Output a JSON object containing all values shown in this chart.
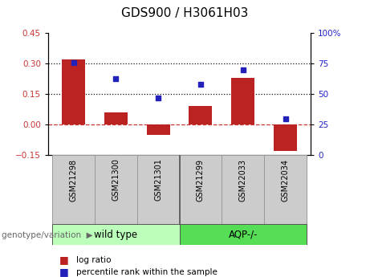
{
  "title": "GDS900 / H3061H03",
  "samples": [
    "GSM21298",
    "GSM21300",
    "GSM21301",
    "GSM21299",
    "GSM22033",
    "GSM22034"
  ],
  "log_ratios": [
    0.32,
    0.06,
    -0.05,
    0.09,
    0.23,
    -0.13
  ],
  "percentile_ranks": [
    76,
    63,
    47,
    58,
    70,
    30
  ],
  "ylim_left": [
    -0.15,
    0.45
  ],
  "ylim_right": [
    0,
    100
  ],
  "yticks_left": [
    -0.15,
    0.0,
    0.15,
    0.3,
    0.45
  ],
  "yticks_right": [
    0,
    25,
    50,
    75,
    100
  ],
  "hlines": [
    0.15,
    0.3
  ],
  "bar_color": "#bb2222",
  "dot_color": "#2222bb",
  "zero_line_color": "#cc3333",
  "hline_color": "#111111",
  "wt_color": "#bbffbb",
  "aqp_color": "#55dd55",
  "gray_color": "#cccccc",
  "border_color": "#999999",
  "legend_items": [
    {
      "label": "log ratio",
      "color": "#bb2222"
    },
    {
      "label": "percentile rank within the sample",
      "color": "#2222bb"
    }
  ],
  "title_fontsize": 11,
  "tick_fontsize": 7.5,
  "sample_fontsize": 7.0,
  "group_fontsize": 8.5,
  "genotype_fontsize": 7.5,
  "legend_fontsize": 7.5,
  "axis_label_color_left": "#cc3333",
  "axis_label_color_right": "#2222cc",
  "bar_width": 0.55
}
